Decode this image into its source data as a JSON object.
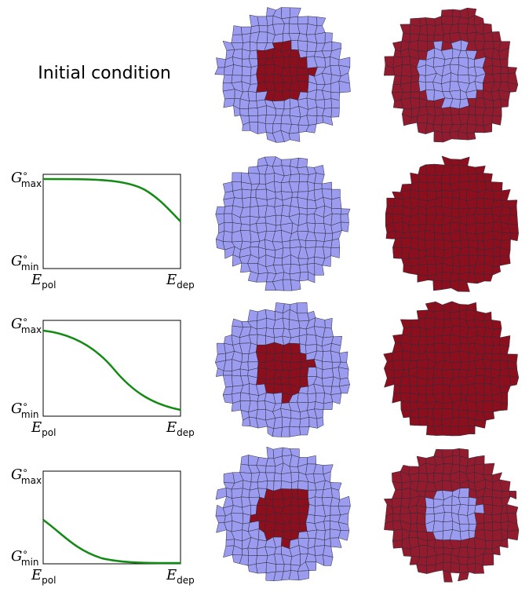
{
  "header": {
    "title": "Initial condition"
  },
  "plots": [
    {
      "y_top": {
        "symbol": "G",
        "sup": "∘",
        "sub": "max"
      },
      "y_bottom": {
        "symbol": "G",
        "sup": "∘",
        "sub": "min"
      },
      "x_left": {
        "symbol": "E",
        "sub": "pol"
      },
      "x_right": {
        "symbol": "E",
        "sub": "dep"
      }
    },
    {
      "y_top": {
        "symbol": "G",
        "sup": "∘",
        "sub": "max"
      },
      "y_bottom": {
        "symbol": "G",
        "sup": "∘",
        "sub": "min"
      },
      "x_left": {
        "symbol": "E",
        "sub": "pol"
      },
      "x_right": {
        "symbol": "E",
        "sub": "dep"
      }
    },
    {
      "y_top": {
        "symbol": "G",
        "sup": "∘",
        "sub": "max"
      },
      "y_bottom": {
        "symbol": "G",
        "sup": "∘",
        "sub": "min"
      },
      "x_left": {
        "symbol": "E",
        "sub": "pol"
      },
      "x_right": {
        "symbol": "E",
        "sub": "dep"
      }
    }
  ]
}
